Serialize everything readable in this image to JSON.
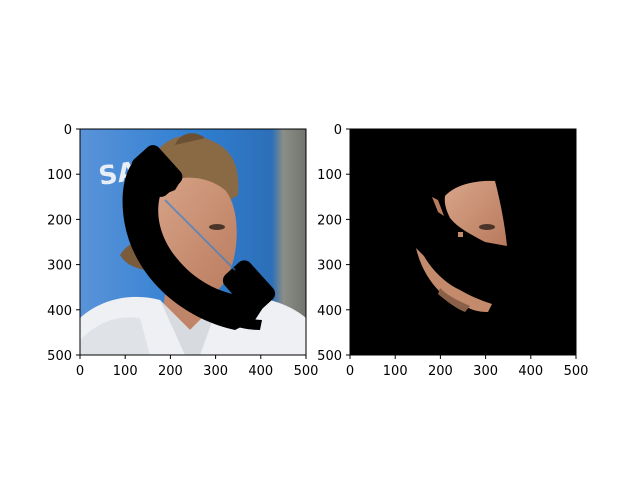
{
  "panels": [
    {
      "name": "original-with-mask",
      "x_ticks": [
        "0",
        "100",
        "200",
        "300",
        "400",
        "500"
      ],
      "y_ticks": [
        "0",
        "100",
        "200",
        "300",
        "400",
        "500"
      ],
      "background_image": "portrait-photo-blue-backdrop",
      "overlay": "black-handset-shaped-occlusion",
      "photo_text": "SA"
    },
    {
      "name": "masked-region-only",
      "x_ticks": [
        "0",
        "100",
        "200",
        "300",
        "400",
        "500"
      ],
      "y_ticks": [
        "0",
        "100",
        "200",
        "300",
        "400",
        "500"
      ],
      "background_color": "#000000",
      "content": "visible-face-fragments"
    }
  ],
  "colors": {
    "backdrop_blue": "#2f7fd2",
    "skin": "#c48a6c",
    "shirt": "#eef0f3",
    "mask": "#000000"
  }
}
